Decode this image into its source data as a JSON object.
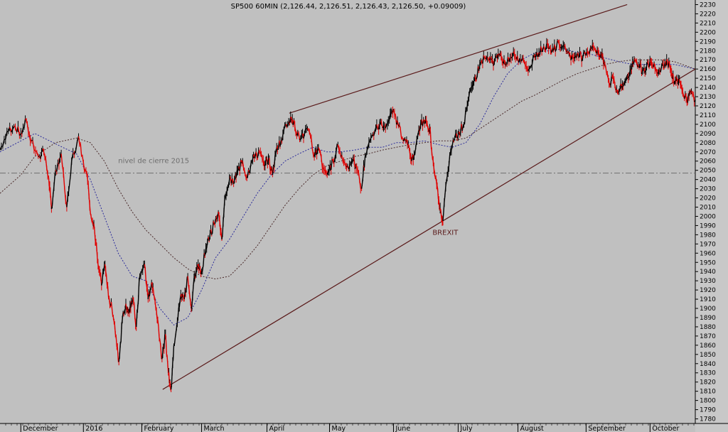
{
  "chart_data": {
    "type": "line",
    "title": "SP500 60MIN (2,126.44, 2,126.51, 2,126.43, 2,126.50, +0.09009)",
    "ylim": [
      1775,
      2235
    ],
    "yticks": [
      1780,
      1790,
      1800,
      1810,
      1820,
      1830,
      1840,
      1850,
      1860,
      1870,
      1880,
      1890,
      1900,
      1910,
      1920,
      1930,
      1940,
      1950,
      1960,
      1970,
      1980,
      1990,
      2000,
      2010,
      2020,
      2030,
      2040,
      2050,
      2060,
      2070,
      2080,
      2090,
      2100,
      2110,
      2120,
      2130,
      2140,
      2150,
      2160,
      2170,
      2180,
      2190,
      2200,
      2210,
      2220,
      2230
    ],
    "x_range": [
      0,
      100
    ],
    "months": [
      {
        "label": "December",
        "x": 3.3
      },
      {
        "label": "2016",
        "x": 12.3
      },
      {
        "label": "February",
        "x": 20.7
      },
      {
        "label": "March",
        "x": 29.3
      },
      {
        "label": "April",
        "x": 38.7
      },
      {
        "label": "May",
        "x": 47.7
      },
      {
        "label": "June",
        "x": 56.9
      },
      {
        "label": "July",
        "x": 66.2
      },
      {
        "label": "August",
        "x": 74.8
      },
      {
        "label": "September",
        "x": 84.6
      },
      {
        "label": "October",
        "x": 93.8
      }
    ],
    "series": [
      {
        "color": "#000000",
        "style": "price",
        "points": [
          [
            0,
            2072
          ],
          [
            1,
            2092
          ],
          [
            2,
            2098
          ],
          [
            3,
            2090
          ],
          [
            3.8,
            2104
          ],
          [
            4.5,
            2082
          ],
          [
            5.5,
            2065
          ],
          [
            6.3,
            2070
          ],
          [
            7.0,
            2042
          ],
          [
            7.4,
            2008
          ],
          [
            8.0,
            2050
          ],
          [
            8.8,
            2068
          ],
          [
            9.6,
            2010
          ],
          [
            10.3,
            2060
          ],
          [
            11.3,
            2087
          ],
          [
            12.0,
            2058
          ],
          [
            12.6,
            2040
          ],
          [
            13.1,
            2000
          ],
          [
            13.6,
            1985
          ],
          [
            14.1,
            1948
          ],
          [
            14.6,
            1925
          ],
          [
            15.1,
            1948
          ],
          [
            15.6,
            1912
          ],
          [
            16.1,
            1900
          ],
          [
            16.6,
            1872
          ],
          [
            17.1,
            1842
          ],
          [
            17.6,
            1888
          ],
          [
            18.1,
            1905
          ],
          [
            18.6,
            1895
          ],
          [
            19.1,
            1912
          ],
          [
            19.6,
            1880
          ],
          [
            20.1,
            1935
          ],
          [
            20.8,
            1948
          ],
          [
            21.3,
            1910
          ],
          [
            21.8,
            1928
          ],
          [
            22.3,
            1908
          ],
          [
            22.8,
            1880
          ],
          [
            23.3,
            1845
          ],
          [
            23.8,
            1872
          ],
          [
            24.2,
            1830
          ],
          [
            24.6,
            1812
          ],
          [
            25.0,
            1860
          ],
          [
            25.5,
            1885
          ],
          [
            26.0,
            1915
          ],
          [
            26.5,
            1910
          ],
          [
            27.0,
            1935
          ],
          [
            27.5,
            1900
          ],
          [
            28.0,
            1935
          ],
          [
            28.5,
            1948
          ],
          [
            29.0,
            1940
          ],
          [
            29.6,
            1965
          ],
          [
            30.2,
            1980
          ],
          [
            30.8,
            1992
          ],
          [
            31.4,
            2005
          ],
          [
            31.9,
            1975
          ],
          [
            32.4,
            2022
          ],
          [
            33.0,
            2040
          ],
          [
            33.6,
            2035
          ],
          [
            34.2,
            2050
          ],
          [
            34.9,
            2060
          ],
          [
            35.5,
            2042
          ],
          [
            36.1,
            2058
          ],
          [
            36.7,
            2065
          ],
          [
            37.3,
            2070
          ],
          [
            38.0,
            2055
          ],
          [
            38.6,
            2062
          ],
          [
            39.2,
            2045
          ],
          [
            39.8,
            2075
          ],
          [
            40.4,
            2082
          ],
          [
            41.1,
            2100
          ],
          [
            41.8,
            2108
          ],
          [
            42.4,
            2098
          ],
          [
            43.1,
            2083
          ],
          [
            43.8,
            2090
          ],
          [
            44.5,
            2092
          ],
          [
            45.2,
            2065
          ],
          [
            45.8,
            2075
          ],
          [
            46.5,
            2052
          ],
          [
            47.2,
            2048
          ],
          [
            47.9,
            2060
          ],
          [
            48.6,
            2078
          ],
          [
            49.3,
            2060
          ],
          [
            50.0,
            2055
          ],
          [
            50.7,
            2060
          ],
          [
            51.3,
            2052
          ],
          [
            52.0,
            2030
          ],
          [
            52.5,
            2065
          ],
          [
            53.2,
            2082
          ],
          [
            53.9,
            2092
          ],
          [
            54.6,
            2100
          ],
          [
            55.3,
            2098
          ],
          [
            56.0,
            2105
          ],
          [
            56.6,
            2115
          ],
          [
            57.3,
            2098
          ],
          [
            58.0,
            2082
          ],
          [
            58.6,
            2078
          ],
          [
            59.2,
            2060
          ],
          [
            59.8,
            2075
          ],
          [
            60.5,
            2100
          ],
          [
            61.2,
            2105
          ],
          [
            61.8,
            2095
          ],
          [
            62.3,
            2060
          ],
          [
            62.8,
            2035
          ],
          [
            63.2,
            2008
          ],
          [
            63.7,
            1995
          ],
          [
            64.2,
            2038
          ],
          [
            64.8,
            2070
          ],
          [
            65.4,
            2085
          ],
          [
            66.0,
            2092
          ],
          [
            66.6,
            2098
          ],
          [
            67.2,
            2120
          ],
          [
            67.8,
            2140
          ],
          [
            68.4,
            2150
          ],
          [
            69.0,
            2165
          ],
          [
            69.7,
            2172
          ],
          [
            70.4,
            2170
          ],
          [
            71.1,
            2168
          ],
          [
            71.8,
            2175
          ],
          [
            72.5,
            2170
          ],
          [
            73.2,
            2168
          ],
          [
            74.0,
            2176
          ],
          [
            74.7,
            2170
          ],
          [
            75.4,
            2168
          ],
          [
            76.1,
            2160
          ],
          [
            76.8,
            2175
          ],
          [
            77.5,
            2178
          ],
          [
            78.2,
            2185
          ],
          [
            78.9,
            2182
          ],
          [
            79.6,
            2180
          ],
          [
            80.3,
            2190
          ],
          [
            81.0,
            2185
          ],
          [
            81.7,
            2178
          ],
          [
            82.4,
            2172
          ],
          [
            83.1,
            2178
          ],
          [
            83.8,
            2172
          ],
          [
            84.5,
            2178
          ],
          [
            85.2,
            2186
          ],
          [
            85.9,
            2180
          ],
          [
            86.5,
            2175
          ],
          [
            87.0,
            2165
          ],
          [
            87.6,
            2145
          ],
          [
            88.2,
            2150
          ],
          [
            88.8,
            2135
          ],
          [
            89.4,
            2140
          ],
          [
            90.0,
            2148
          ],
          [
            90.6,
            2158
          ],
          [
            91.2,
            2170
          ],
          [
            91.8,
            2165
          ],
          [
            92.4,
            2158
          ],
          [
            93.0,
            2163
          ],
          [
            93.6,
            2168
          ],
          [
            94.2,
            2160
          ],
          [
            94.8,
            2158
          ],
          [
            95.4,
            2165
          ],
          [
            96.0,
            2168
          ],
          [
            96.5,
            2158
          ],
          [
            97.0,
            2145
          ],
          [
            97.6,
            2148
          ],
          [
            98.2,
            2135
          ],
          [
            98.8,
            2125
          ],
          [
            99.3,
            2135
          ],
          [
            100,
            2126.5
          ]
        ]
      },
      {
        "color": "#2a2a9a",
        "style": "dotted",
        "points": [
          [
            0,
            2070
          ],
          [
            5,
            2090
          ],
          [
            9,
            2075
          ],
          [
            11,
            2068
          ],
          [
            13,
            2040
          ],
          [
            15,
            2000
          ],
          [
            17,
            1960
          ],
          [
            19,
            1935
          ],
          [
            21,
            1930
          ],
          [
            23,
            1900
          ],
          [
            25,
            1882
          ],
          [
            27,
            1890
          ],
          [
            29,
            1920
          ],
          [
            31,
            1955
          ],
          [
            33,
            1975
          ],
          [
            35,
            2000
          ],
          [
            37,
            2025
          ],
          [
            39,
            2045
          ],
          [
            41,
            2060
          ],
          [
            43,
            2068
          ],
          [
            45,
            2075
          ],
          [
            47,
            2070
          ],
          [
            49,
            2070
          ],
          [
            51,
            2072
          ],
          [
            53,
            2075
          ],
          [
            55,
            2075
          ],
          [
            57,
            2080
          ],
          [
            59,
            2080
          ],
          [
            61,
            2082
          ],
          [
            63,
            2078
          ],
          [
            65,
            2075
          ],
          [
            67,
            2080
          ],
          [
            69,
            2100
          ],
          [
            71,
            2130
          ],
          [
            73,
            2155
          ],
          [
            75,
            2170
          ],
          [
            77,
            2178
          ],
          [
            79,
            2180
          ],
          [
            81,
            2182
          ],
          [
            83,
            2178
          ],
          [
            85,
            2176
          ],
          [
            87,
            2172
          ],
          [
            89,
            2168
          ],
          [
            91,
            2165
          ],
          [
            93,
            2165
          ],
          [
            95,
            2165
          ],
          [
            97,
            2165
          ],
          [
            100,
            2160
          ]
        ]
      },
      {
        "color": "#4a2a2a",
        "style": "dotted",
        "points": [
          [
            0,
            2025
          ],
          [
            3,
            2045
          ],
          [
            5,
            2065
          ],
          [
            8,
            2080
          ],
          [
            11,
            2085
          ],
          [
            13,
            2080
          ],
          [
            15,
            2060
          ],
          [
            17,
            2030
          ],
          [
            19,
            2005
          ],
          [
            21,
            1985
          ],
          [
            23,
            1970
          ],
          [
            25,
            1955
          ],
          [
            27,
            1943
          ],
          [
            29,
            1935
          ],
          [
            31,
            1932
          ],
          [
            33,
            1935
          ],
          [
            35,
            1950
          ],
          [
            37,
            1968
          ],
          [
            39,
            1990
          ],
          [
            41,
            2012
          ],
          [
            43,
            2030
          ],
          [
            45,
            2045
          ],
          [
            47,
            2055
          ],
          [
            49,
            2060
          ],
          [
            51,
            2065
          ],
          [
            53,
            2068
          ],
          [
            55,
            2072
          ],
          [
            57,
            2075
          ],
          [
            59,
            2078
          ],
          [
            61,
            2080
          ],
          [
            63,
            2082
          ],
          [
            65,
            2082
          ],
          [
            67,
            2085
          ],
          [
            69,
            2095
          ],
          [
            71,
            2105
          ],
          [
            73,
            2115
          ],
          [
            75,
            2125
          ],
          [
            77,
            2132
          ],
          [
            79,
            2140
          ],
          [
            81,
            2148
          ],
          [
            83,
            2155
          ],
          [
            85,
            2160
          ],
          [
            87,
            2165
          ],
          [
            89,
            2168
          ],
          [
            91,
            2170
          ],
          [
            93,
            2170
          ],
          [
            95,
            2170
          ],
          [
            97,
            2168
          ],
          [
            100,
            2160
          ]
        ]
      }
    ],
    "trendlines": [
      {
        "from": [
          41.6,
          2112
        ],
        "to": [
          90.2,
          2230
        ]
      },
      {
        "from": [
          23.4,
          1812
        ],
        "to": [
          100,
          2160
        ]
      }
    ],
    "hline": {
      "y": 2047
    },
    "annotations": [
      {
        "text": "nivel de cierre 2015",
        "x": 17,
        "y": 2058
      },
      {
        "text": "BREXIT",
        "x": 62.2,
        "y": 1980
      }
    ]
  }
}
